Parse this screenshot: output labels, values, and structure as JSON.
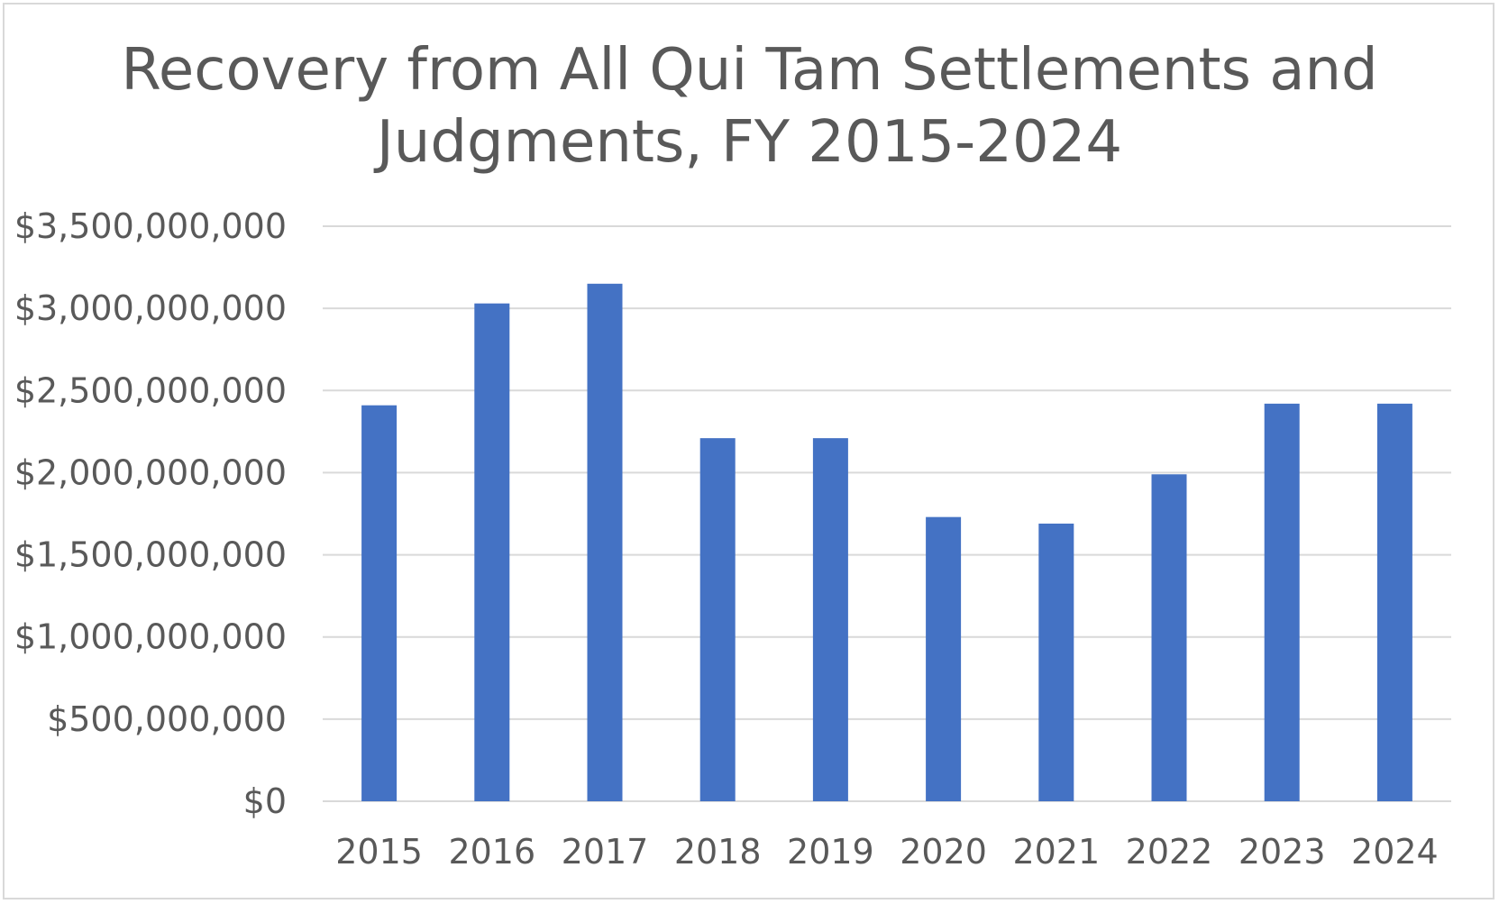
{
  "chart_data": {
    "type": "bar",
    "title_lines": [
      "Recovery from All Qui Tam Settlements and",
      "Judgments, FY 2015-2024"
    ],
    "categories": [
      "2015",
      "2016",
      "2017",
      "2018",
      "2019",
      "2020",
      "2021",
      "2022",
      "2023",
      "2024"
    ],
    "values": [
      2410000000,
      3030000000,
      3150000000,
      2210000000,
      2210000000,
      1730000000,
      1690000000,
      1990000000,
      2420000000,
      2420000000
    ],
    "ylim": [
      0,
      3500000000
    ],
    "y_ticks": [
      0,
      500000000,
      1000000000,
      1500000000,
      2000000000,
      2500000000,
      3000000000,
      3500000000
    ],
    "y_tick_labels": [
      "$0",
      "$500,000,000",
      "$1,000,000,000",
      "$1,500,000,000",
      "$2,000,000,000",
      "$2,500,000,000",
      "$3,000,000,000",
      "$3,500,000,000"
    ],
    "xlabel": "",
    "ylabel": "",
    "grid": true,
    "legend": "none",
    "bar_color": "#4472c4",
    "grid_color": "#d9d9d9",
    "text_color": "#595959"
  }
}
